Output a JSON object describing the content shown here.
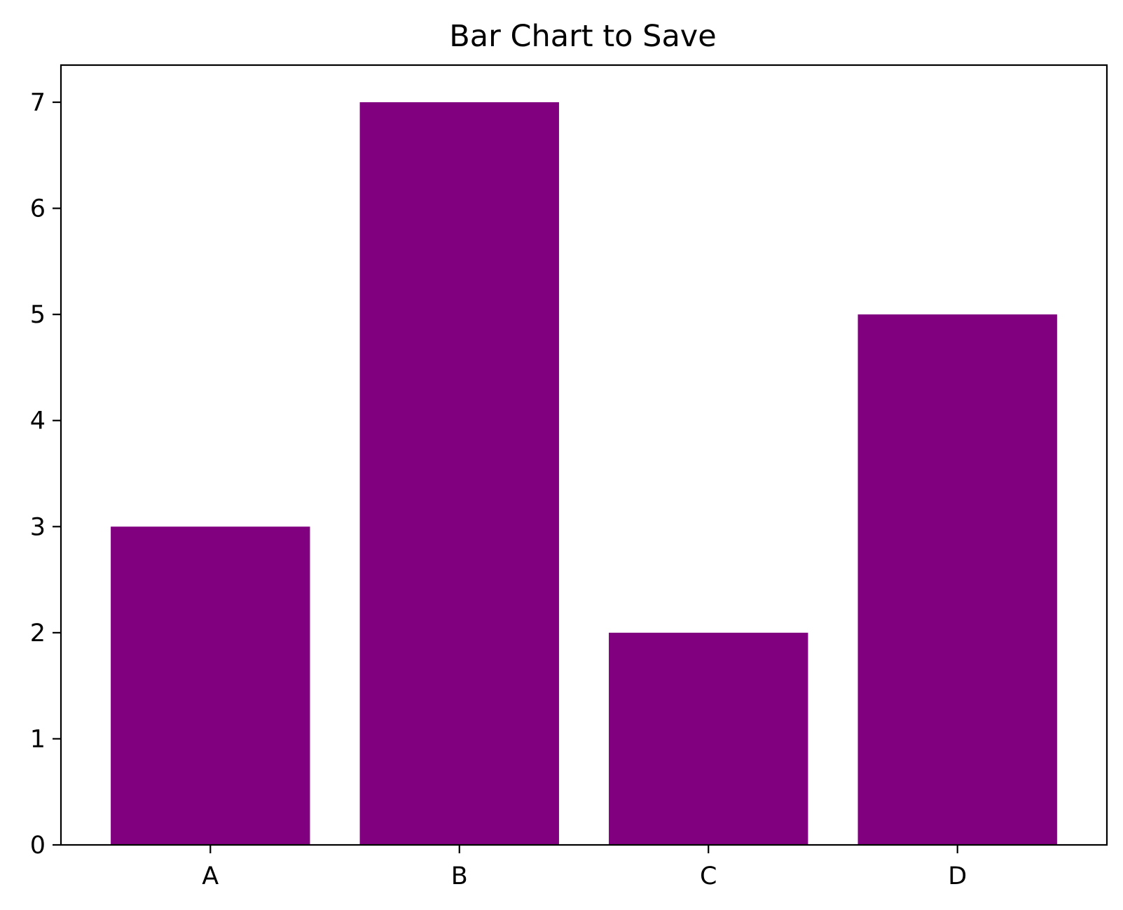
{
  "chart_data": {
    "type": "bar",
    "title": "Bar Chart to Save",
    "xlabel": "",
    "ylabel": "",
    "categories": [
      "A",
      "B",
      "C",
      "D"
    ],
    "values": [
      3,
      7,
      2,
      5
    ],
    "ylim": [
      0,
      7.35
    ],
    "yticks": [
      0,
      1,
      2,
      3,
      4,
      5,
      6,
      7
    ],
    "bar_color": "#800080",
    "grid": false,
    "legend": "none"
  }
}
